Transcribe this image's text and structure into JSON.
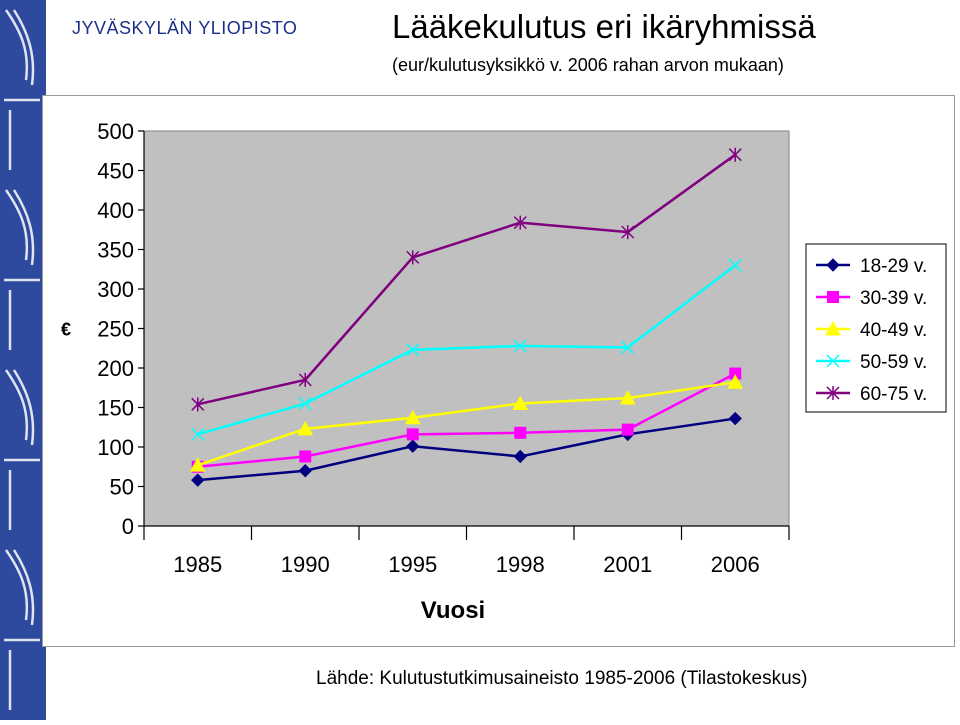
{
  "header": {
    "university": "JYVÄSKYLÄN YLIOPISTO",
    "title": "Lääkekulutus eri ikäryhmissä",
    "subtitle": "(eur/kulutusyksikkö v. 2006 rahan arvon mukaan)"
  },
  "footer": {
    "source": "Lähde: Kulutustutkimusaineisto 1985-2006 (Tilastokeskus)"
  },
  "colors": {
    "sidebar": "#2e4a9e",
    "plot_background": "#c0c0c0",
    "university_text": "#1c2f8a"
  },
  "chart_data": {
    "type": "line",
    "title": "",
    "xlabel": "Vuosi",
    "ylabel": "€",
    "categories": [
      "1985",
      "1990",
      "1995",
      "1998",
      "2001",
      "2006"
    ],
    "ylim": [
      0,
      500
    ],
    "yticks": [
      0,
      50,
      100,
      150,
      200,
      250,
      300,
      350,
      400,
      450,
      500
    ],
    "grid": false,
    "legend_position": "right",
    "series": [
      {
        "name": "18-29 v.",
        "color": "#000080",
        "marker": "diamond",
        "values": [
          58,
          70,
          101,
          88,
          116,
          136
        ]
      },
      {
        "name": "30-39 v.",
        "color": "#ff00ff",
        "marker": "square",
        "values": [
          75,
          88,
          116,
          118,
          122,
          193
        ]
      },
      {
        "name": "40-49 v.",
        "color": "#ffff00",
        "marker": "triangle",
        "values": [
          77,
          123,
          137,
          155,
          162,
          182
        ]
      },
      {
        "name": "50-59 v.",
        "color": "#00ffff",
        "marker": "x",
        "values": [
          116,
          155,
          223,
          228,
          226,
          330
        ]
      },
      {
        "name": "60-75 v.",
        "color": "#800080",
        "marker": "star",
        "values": [
          154,
          185,
          340,
          384,
          372,
          470
        ]
      }
    ]
  }
}
